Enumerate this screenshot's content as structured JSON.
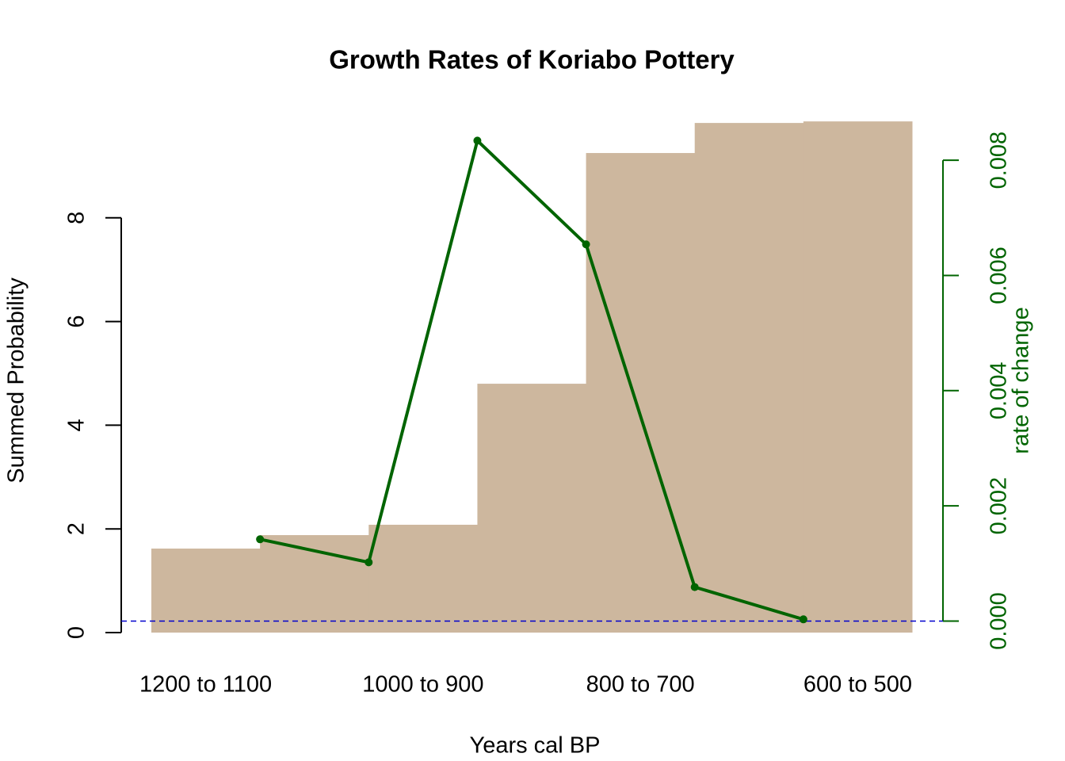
{
  "chart_data": {
    "type": "bar",
    "title": "Growth Rates of Koriabo Pottery",
    "x_label": "Years cal BP",
    "y_label": "Summed Probability",
    "y2_label": "rate of change",
    "categories": [
      "1200 to 1100",
      null,
      "1000 to 900",
      null,
      "800 to 700",
      null,
      "600 to 500"
    ],
    "values": [
      1.62,
      1.88,
      2.08,
      4.8,
      9.25,
      9.83,
      9.86
    ],
    "color": "#cdb79e",
    "xlim": [
      1200,
      500
    ],
    "ylim": [
      0,
      10
    ],
    "yticks": [
      0,
      2,
      4,
      6,
      8
    ],
    "y2lim": [
      -0.0002,
      0.0088
    ],
    "y2ticks": [
      {
        "value": 0,
        "label": "0.000"
      },
      {
        "value": 0.002,
        "label": "0.002"
      },
      {
        "value": 0.004,
        "label": "0.004"
      },
      {
        "value": 0.006,
        "label": "0.006"
      },
      {
        "value": 0.008,
        "label": "0.008"
      }
    ],
    "y2_color": "#006400",
    "line": {
      "x": [
        1100,
        1000,
        900,
        800,
        700,
        600
      ],
      "values": [
        0.00142,
        0.00102,
        0.00834,
        0.00654,
        0.00059,
        3e-05
      ],
      "color": "#006400",
      "axis": "y2"
    },
    "hline": {
      "value": 0,
      "axis": "y2",
      "color": "#0000cd"
    }
  }
}
